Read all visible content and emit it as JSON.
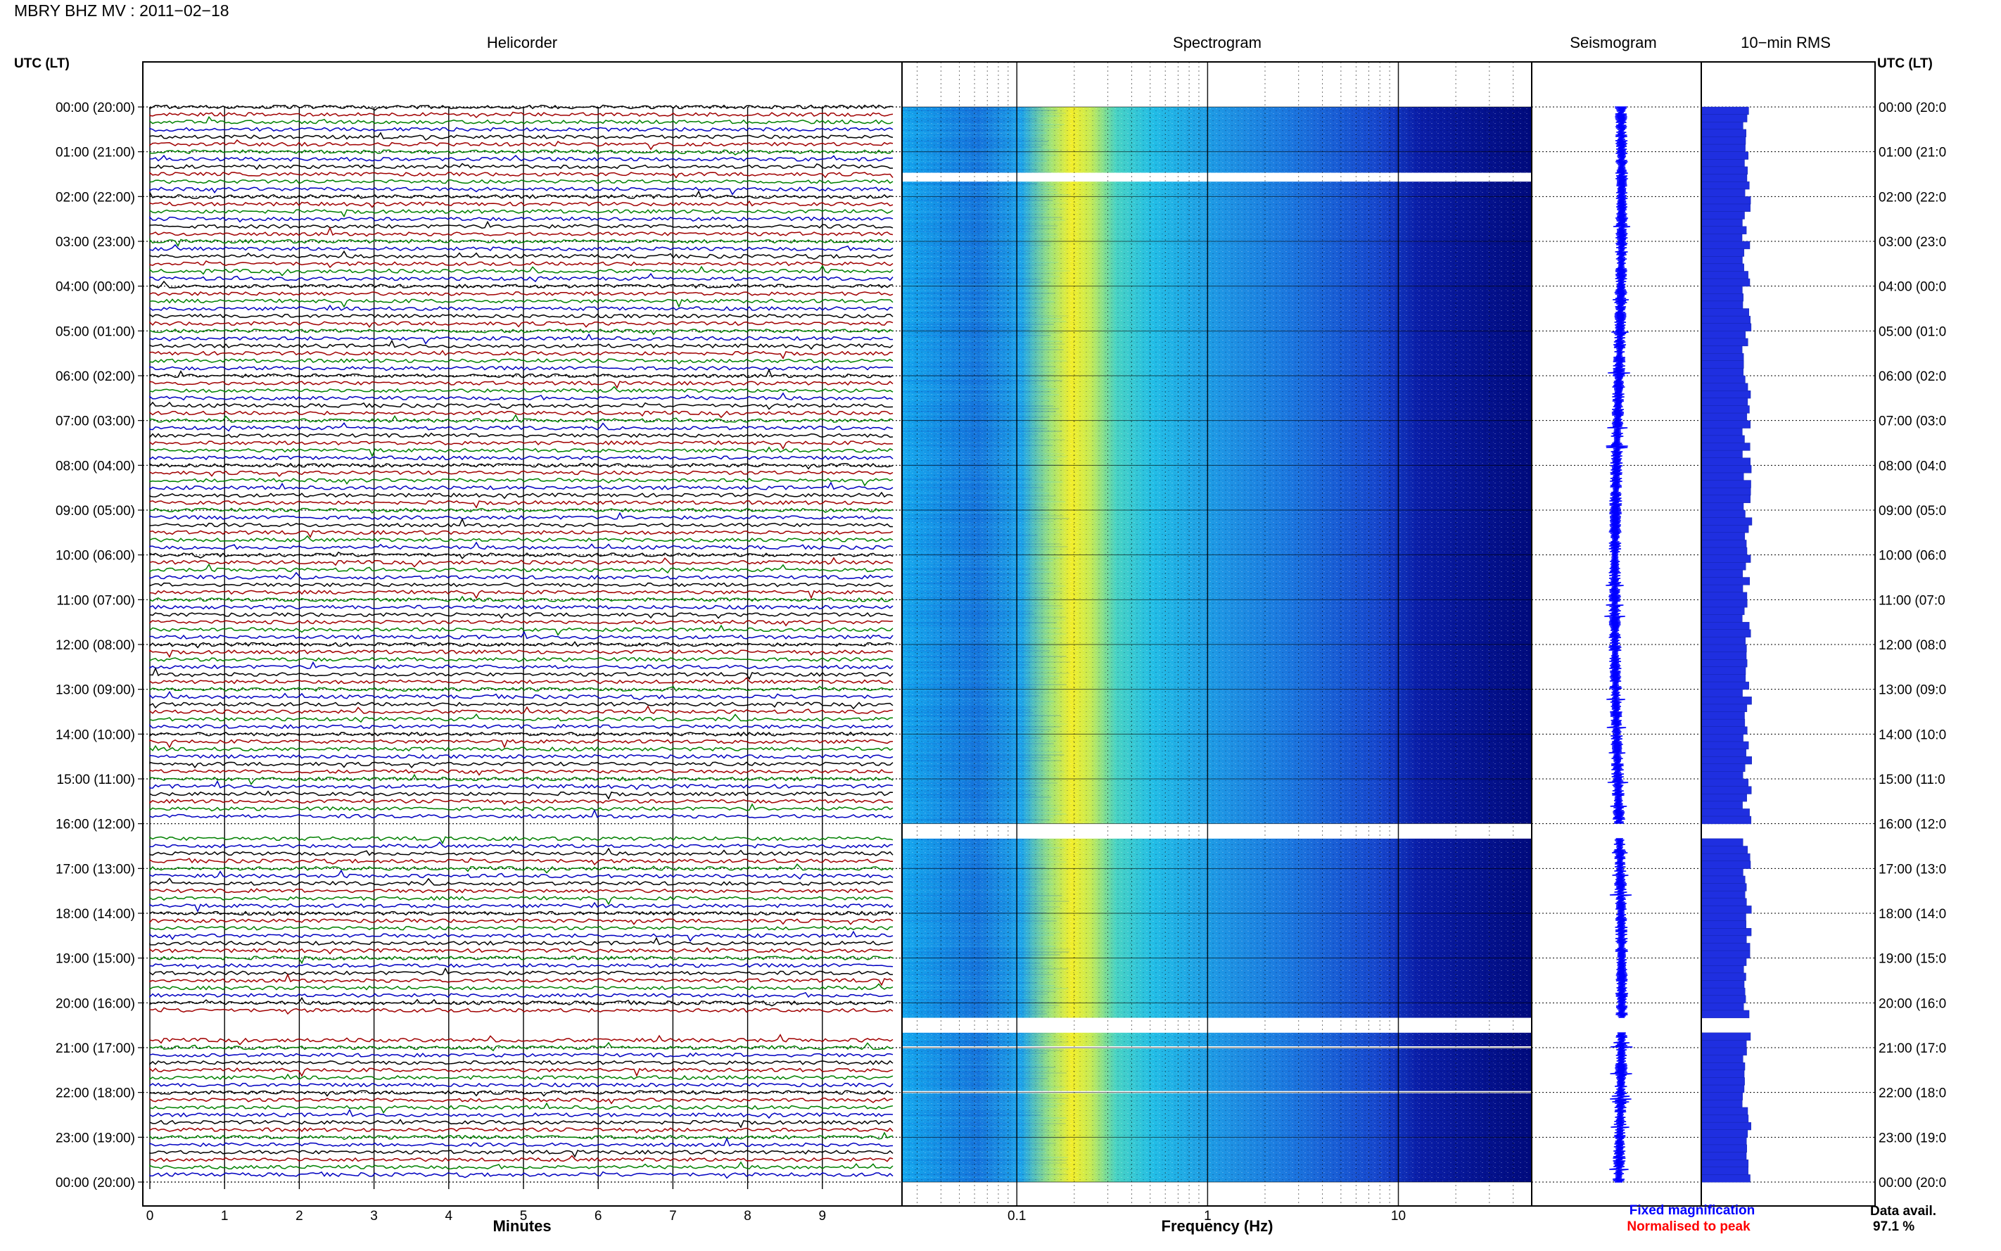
{
  "header": {
    "title": "MBRY BHZ MV : 2011−02−18",
    "utc_left": "UTC (LT)",
    "utc_right": "UTC (LT)"
  },
  "panels": {
    "helicorder": "Helicorder",
    "spectrogram": "Spectrogram",
    "seismogram": "Seismogram",
    "rms": "10−min RMS"
  },
  "footer": {
    "minutes_label": "Minutes",
    "frequency_label": "Frequency (Hz)",
    "legend_fixed": "Fixed magnification",
    "legend_normalised": "Normalised to peak",
    "data_avail_label": "Data avail.",
    "data_avail_value": "97.1 %"
  },
  "colors": {
    "fixed": "#0000ff",
    "normalised": "#ff0000",
    "traces": [
      "#000000",
      "#a00000",
      "#008000",
      "#0000c0"
    ],
    "rms_bar": "#1f2fe0"
  },
  "chart_data": [
    {
      "type": "line",
      "name": "helicorder",
      "title": "Helicorder",
      "xlabel": "Minutes",
      "xlim": [
        0,
        10
      ],
      "x_ticks": [
        "0",
        "1",
        "2",
        "3",
        "4",
        "5",
        "6",
        "7",
        "8",
        "9"
      ],
      "rows_per_hour": 6,
      "hours": 24,
      "gaps_utc": [
        [
          "16:00",
          "16:15"
        ],
        [
          "20:20",
          "20:40"
        ]
      ]
    },
    {
      "type": "heatmap",
      "name": "spectrogram",
      "title": "Spectrogram",
      "xlabel": "Frequency (Hz)",
      "xscale": "log",
      "xlim": [
        0.025,
        50
      ],
      "x_ticks": [
        "0.1",
        "1",
        "10"
      ],
      "energy_peak_hz": 0.2,
      "gaps_utc": [
        [
          "01:30",
          "01:40"
        ],
        [
          "16:00",
          "16:20"
        ],
        [
          "20:20",
          "20:40"
        ]
      ]
    },
    {
      "type": "line",
      "name": "seismogram",
      "title": "Seismogram",
      "gaps_utc": [
        [
          "16:00",
          "16:20"
        ],
        [
          "20:20",
          "20:40"
        ]
      ]
    },
    {
      "type": "bar",
      "name": "rms",
      "title": "10−min RMS",
      "gaps_utc": [
        [
          "16:00",
          "16:20"
        ],
        [
          "20:20",
          "20:40"
        ]
      ]
    }
  ],
  "time_axis": {
    "labels": [
      "00:00 (20:00)",
      "01:00 (21:00)",
      "02:00 (22:00)",
      "03:00 (23:00)",
      "04:00 (00:00)",
      "05:00 (01:00)",
      "06:00 (02:00)",
      "07:00 (03:00)",
      "08:00 (04:00)",
      "09:00 (05:00)",
      "10:00 (06:00)",
      "11:00 (07:00)",
      "12:00 (08:00)",
      "13:00 (09:00)",
      "14:00 (10:00)",
      "15:00 (11:00)",
      "16:00 (12:00)",
      "17:00 (13:00)",
      "18:00 (14:00)",
      "19:00 (15:00)",
      "20:00 (16:00)",
      "21:00 (17:00)",
      "22:00 (18:00)",
      "23:00 (19:00)",
      "00:00 (20:00)"
    ],
    "right_labels": [
      "00:00 (20:0",
      "01:00 (21:0",
      "02:00 (22:0",
      "03:00 (23:0",
      "04:00 (00:0",
      "05:00 (01:0",
      "06:00 (02:0",
      "07:00 (03:0",
      "08:00 (04:0",
      "09:00 (05:0",
      "10:00 (06:0",
      "11:00 (07:0",
      "12:00 (08:0",
      "13:00 (09:0",
      "14:00 (10:0",
      "15:00 (11:0",
      "16:00 (12:0",
      "17:00 (13:0",
      "18:00 (14:0",
      "19:00 (15:0",
      "20:00 (16:0",
      "21:00 (17:0",
      "22:00 (18:0",
      "23:00 (19:0",
      "00:00 (20:0"
    ]
  }
}
